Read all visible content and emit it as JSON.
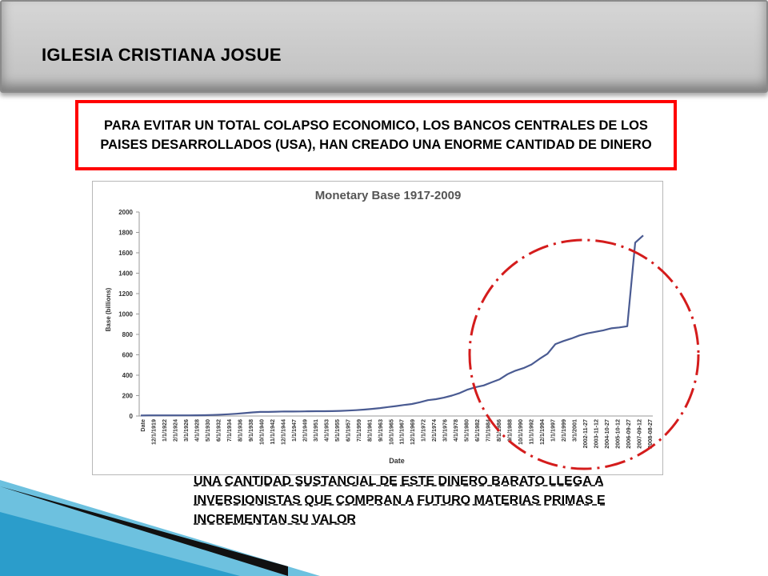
{
  "header": {
    "title": "IGLESIA CRISTIANA JOSUE"
  },
  "callout": {
    "text": "PARA EVITAR UN TOTAL COLAPSO ECONOMICO, LOS BANCOS CENTRALES DE LOS PAISES DESARROLLADOS (USA), HAN CREADO UNA ENORME CANTIDAD DE DINERO"
  },
  "bottom": {
    "text": "UNA CANTIDAD SUSTANCIAL DE ESTE DINERO BARATO LLEGA A INVERSIONISTAS QUE COMPRAN A FUTURO MATERIAS PRIMAS E INCREMENTAN SU VALOR"
  },
  "colors": {
    "callout_border": "#ff0000",
    "series": "#4a5b92",
    "circle": "#d41c1c"
  },
  "chart_data": {
    "type": "line",
    "title": "Monetary Base 1917-2009",
    "xlabel": "Date",
    "ylabel": "Base (billions)",
    "ylim": [
      0,
      2000
    ],
    "yticks": [
      0,
      200,
      400,
      600,
      800,
      1000,
      1200,
      1400,
      1600,
      1800,
      2000
    ],
    "grid": false,
    "legend": "none",
    "x_tick_labels": [
      "Date",
      "12/1/1919",
      "1/1/1922",
      "2/1/1924",
      "3/1/1926",
      "4/1/1928",
      "5/1/1930",
      "6/1/1932",
      "7/1/1934",
      "8/1/1936",
      "9/1/1938",
      "10/1/1940",
      "11/1/1942",
      "12/1/1944",
      "1/1/1947",
      "2/1/1949",
      "3/1/1951",
      "4/1/1953",
      "5/1/1955",
      "6/1/1957",
      "7/1/1959",
      "8/1/1961",
      "9/1/1963",
      "10/1/1965",
      "11/1/1967",
      "12/1/1969",
      "1/1/1972",
      "2/1/1974",
      "3/1/1976",
      "4/1/1978",
      "5/1/1980",
      "6/1/1982",
      "7/1/1984",
      "8/1/1986",
      "9/1/1988",
      "10/1/1990",
      "11/1/1992",
      "12/1/1994",
      "1/1/1997",
      "2/1/1999",
      "3/1/2001",
      "2002-11-27",
      "2003-11-12",
      "2004-10-27",
      "2005-10-12",
      "2006-09-27",
      "2007-09-12",
      "2008-08-27"
    ],
    "series": [
      {
        "values": [
          5,
          6,
          6,
          6,
          6,
          6,
          6,
          7,
          8,
          10,
          13,
          17,
          22,
          28,
          35,
          40,
          40,
          42,
          45,
          44,
          45,
          46,
          47,
          47,
          48,
          50,
          53,
          57,
          63,
          70,
          78,
          88,
          97,
          108,
          118,
          135,
          155,
          165,
          180,
          200,
          225,
          260,
          283,
          300,
          330,
          360,
          410,
          445,
          470,
          505,
          560,
          610,
          705,
          735,
          760,
          790,
          810,
          825,
          840,
          860,
          868,
          880,
          1700,
          1770
        ]
      }
    ]
  }
}
